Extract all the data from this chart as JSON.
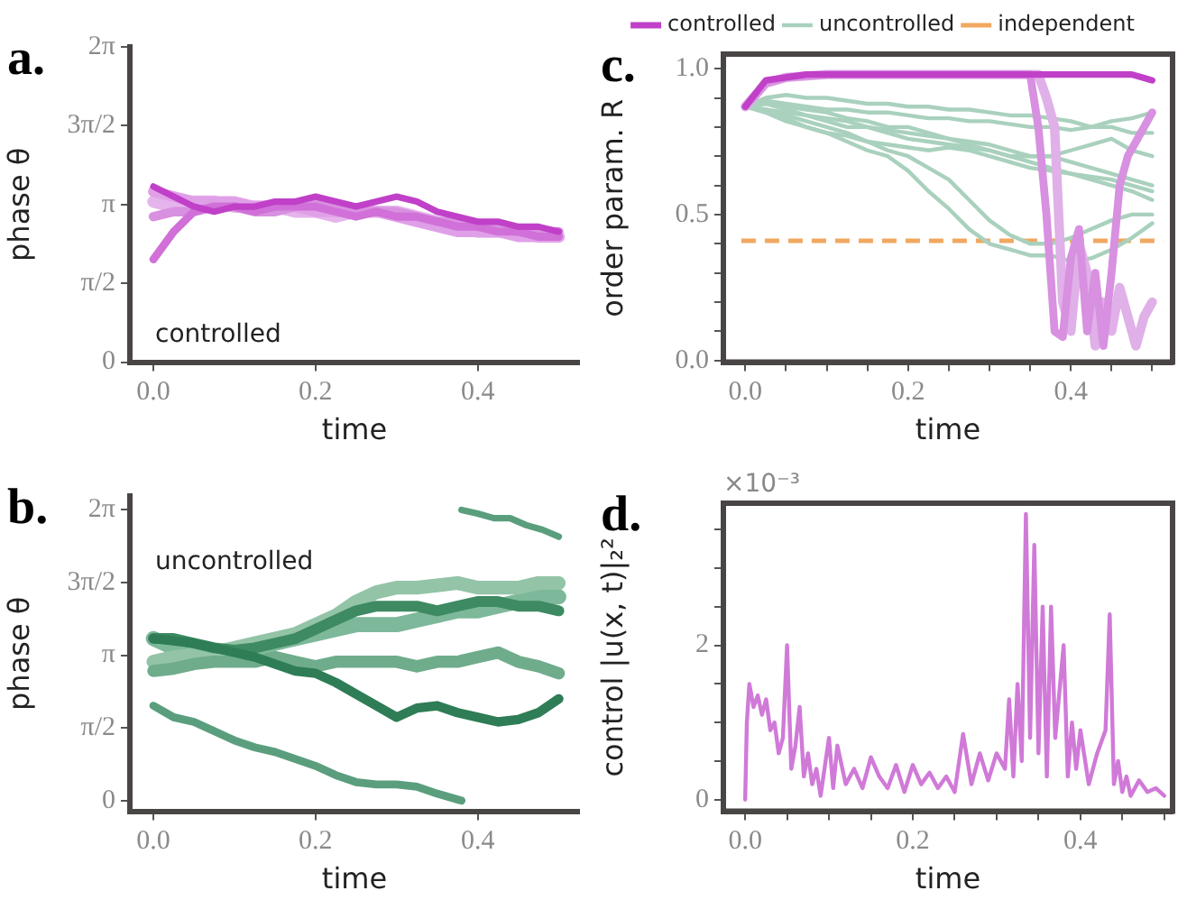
{
  "chart_data": [
    {
      "type": "line",
      "title": "a.",
      "xlabel": "time",
      "ylabel": "phase θ",
      "annotations": [
        "controlled"
      ],
      "marker": "none",
      "grid": false,
      "xlim": [
        -0.029,
        0.525
      ],
      "xticks": [
        {
          "value": 0,
          "label": "0.0"
        },
        {
          "value": 0.2,
          "label": "0.2"
        },
        {
          "value": 0.4,
          "label": "0.4"
        }
      ],
      "ylim": [
        0,
        6.2832
      ],
      "yticks": [
        {
          "value": 0,
          "label": "0"
        },
        {
          "value": 1.5708,
          "label": "π/2"
        },
        {
          "value": 3.1416,
          "label": "π"
        },
        {
          "value": 4.7124,
          "label": "3π/2"
        },
        {
          "value": 6.2832,
          "label": "2π"
        }
      ],
      "x": [
        0,
        0.025,
        0.05,
        0.075,
        0.1,
        0.125,
        0.15,
        0.175,
        0.2,
        0.225,
        0.25,
        0.275,
        0.3,
        0.325,
        0.35,
        0.375,
        0.4,
        0.425,
        0.45,
        0.475,
        0.5
      ],
      "series": [
        {
          "color": "#c040c8",
          "values": [
            3.5,
            3.3,
            3.1,
            3.0,
            3.1,
            3.1,
            3.2,
            3.2,
            3.3,
            3.2,
            3.1,
            3.2,
            3.3,
            3.2,
            3.0,
            2.9,
            2.8,
            2.8,
            2.7,
            2.7,
            2.6
          ]
        },
        {
          "color": "#d070d8",
          "values": [
            2.05,
            2.6,
            3.0,
            3.1,
            3.1,
            3.0,
            3.1,
            3.1,
            3.1,
            3.0,
            2.9,
            3.0,
            2.9,
            2.9,
            2.8,
            2.7,
            2.7,
            2.6,
            2.6,
            2.5,
            2.5
          ]
        },
        {
          "color": "#d890e0",
          "values": [
            2.9,
            3.0,
            3.0,
            3.1,
            3.1,
            3.0,
            3.0,
            3.1,
            3.2,
            3.1,
            3.0,
            3.0,
            3.0,
            2.9,
            2.8,
            2.8,
            2.7,
            2.7,
            2.6,
            2.6,
            2.6
          ]
        },
        {
          "color": "#e0a0e8",
          "values": [
            3.4,
            3.3,
            3.2,
            3.2,
            3.2,
            3.1,
            3.1,
            3.1,
            3.0,
            3.0,
            3.0,
            3.0,
            2.9,
            2.8,
            2.7,
            2.6,
            2.6,
            2.6,
            2.5,
            2.5,
            2.5
          ]
        },
        {
          "color": "#e6b4ec",
          "values": [
            3.2,
            3.1,
            3.2,
            3.2,
            3.1,
            3.1,
            3.1,
            3.0,
            3.0,
            2.9,
            3.0,
            3.0,
            3.0,
            2.9,
            2.8,
            2.7,
            2.6,
            2.6,
            2.6,
            2.5,
            2.5
          ]
        }
      ]
    },
    {
      "type": "line",
      "title": "c.",
      "xlabel": "time",
      "ylabel": "order param. R",
      "marker": "none",
      "grid": false,
      "legend": "top",
      "xlim": [
        -0.027,
        0.525
      ],
      "xticks": [
        {
          "value": 0,
          "label": "0.0"
        },
        {
          "value": 0.05,
          "label": null
        },
        {
          "value": 0.1,
          "label": null
        },
        {
          "value": 0.15,
          "label": null
        },
        {
          "value": 0.2,
          "label": "0.2"
        },
        {
          "value": 0.25,
          "label": null
        },
        {
          "value": 0.3,
          "label": null
        },
        {
          "value": 0.35,
          "label": null
        },
        {
          "value": 0.4,
          "label": "0.4"
        },
        {
          "value": 0.45,
          "label": null
        },
        {
          "value": 0.5,
          "label": null
        }
      ],
      "ylim": [
        -0.006,
        1.05
      ],
      "yticks": [
        {
          "value": 0,
          "label": "0.0"
        },
        {
          "value": 0.1,
          "label": null
        },
        {
          "value": 0.2,
          "label": null
        },
        {
          "value": 0.3,
          "label": null
        },
        {
          "value": 0.4,
          "label": null
        },
        0.5,
        {
          "value": 0.6,
          "label": null
        },
        {
          "value": 0.7,
          "label": null
        },
        {
          "value": 0.8,
          "label": null
        },
        {
          "value": 0.9,
          "label": null
        },
        {
          "value": 1,
          "label": "1.0"
        }
      ],
      "x": [
        0,
        0.025,
        0.05,
        0.075,
        0.1,
        0.125,
        0.15,
        0.175,
        0.2,
        0.225,
        0.25,
        0.275,
        0.3,
        0.325,
        0.35,
        0.375,
        0.4,
        0.425,
        0.45,
        0.475,
        0.5
      ],
      "ref_lines": [
        {
          "axis": "y",
          "value": 0.41,
          "label": "independent",
          "color": "#f0a860",
          "line_style": "dashed"
        }
      ],
      "series": [
        {
          "name": "controlled",
          "color": "#c040c8",
          "values": [
            0.87,
            0.96,
            0.97,
            0.98,
            0.98,
            0.98,
            0.98,
            0.98,
            0.98,
            0.98,
            0.98,
            0.98,
            0.98,
            0.98,
            0.98,
            0.98,
            0.98,
            0.98,
            0.98,
            0.98,
            0.96
          ]
        },
        {
          "color": "#d890e0",
          "x": [
            0,
            0.025,
            0.05,
            0.1,
            0.15,
            0.2,
            0.25,
            0.3,
            0.35,
            0.36,
            0.37,
            0.38,
            0.39,
            0.4,
            0.41,
            0.42,
            0.43,
            0.44,
            0.45,
            0.46,
            0.47,
            0.48,
            0.49,
            0.5
          ],
          "values": [
            0.87,
            0.95,
            0.97,
            0.98,
            0.98,
            0.98,
            0.98,
            0.98,
            0.98,
            0.8,
            0.5,
            0.1,
            0.08,
            0.35,
            0.45,
            0.1,
            0.3,
            0.05,
            0.3,
            0.6,
            0.7,
            0.75,
            0.8,
            0.85
          ]
        },
        {
          "color": "#e0b0e8",
          "x": [
            0,
            0.025,
            0.05,
            0.1,
            0.15,
            0.2,
            0.25,
            0.3,
            0.35,
            0.36,
            0.37,
            0.38,
            0.39,
            0.4,
            0.41,
            0.42,
            0.43,
            0.44,
            0.45,
            0.46,
            0.47,
            0.48,
            0.49,
            0.5
          ],
          "values": [
            0.87,
            0.95,
            0.97,
            0.98,
            0.98,
            0.98,
            0.98,
            0.98,
            0.98,
            0.98,
            0.9,
            0.8,
            0.2,
            0.1,
            0.4,
            0.3,
            0.05,
            0.2,
            0.1,
            0.25,
            0.15,
            0.05,
            0.15,
            0.2
          ]
        },
        {
          "name": "uncontrolled",
          "color": "#a9d1bd",
          "values": [
            0.87,
            0.85,
            0.83,
            0.8,
            0.78,
            0.75,
            0.72,
            0.7,
            0.65,
            0.58,
            0.52,
            0.45,
            0.4,
            0.38,
            0.36,
            0.36,
            0.34,
            0.35,
            0.38,
            0.42,
            0.47
          ]
        },
        {
          "color": "#a9d1bd",
          "values": [
            0.87,
            0.86,
            0.84,
            0.82,
            0.8,
            0.78,
            0.75,
            0.72,
            0.7,
            0.66,
            0.62,
            0.55,
            0.48,
            0.43,
            0.4,
            0.4,
            0.42,
            0.45,
            0.48,
            0.5,
            0.5
          ]
        },
        {
          "color": "#a9d1bd",
          "values": [
            0.87,
            0.88,
            0.87,
            0.86,
            0.85,
            0.83,
            0.82,
            0.8,
            0.8,
            0.78,
            0.76,
            0.74,
            0.72,
            0.7,
            0.68,
            0.66,
            0.64,
            0.62,
            0.6,
            0.58,
            0.55
          ]
        },
        {
          "color": "#a9d1bd",
          "values": [
            0.87,
            0.86,
            0.85,
            0.84,
            0.83,
            0.82,
            0.8,
            0.79,
            0.78,
            0.77,
            0.76,
            0.75,
            0.74,
            0.72,
            0.7,
            0.7,
            0.68,
            0.66,
            0.64,
            0.62,
            0.6
          ]
        },
        {
          "color": "#a9d1bd",
          "values": [
            0.87,
            0.9,
            0.91,
            0.9,
            0.9,
            0.89,
            0.88,
            0.88,
            0.87,
            0.87,
            0.86,
            0.86,
            0.85,
            0.84,
            0.84,
            0.83,
            0.82,
            0.8,
            0.8,
            0.78,
            0.78
          ]
        },
        {
          "color": "#a9d1bd",
          "values": [
            0.87,
            0.88,
            0.86,
            0.84,
            0.82,
            0.8,
            0.8,
            0.78,
            0.76,
            0.75,
            0.74,
            0.73,
            0.72,
            0.7,
            0.7,
            0.7,
            0.72,
            0.74,
            0.76,
            0.72,
            0.7
          ]
        },
        {
          "color": "#a9d1bd",
          "values": [
            0.87,
            0.85,
            0.82,
            0.8,
            0.78,
            0.77,
            0.75,
            0.74,
            0.73,
            0.72,
            0.73,
            0.72,
            0.7,
            0.68,
            0.66,
            0.65,
            0.64,
            0.63,
            0.62,
            0.6,
            0.58
          ]
        },
        {
          "color": "#a9d1bd",
          "values": [
            0.87,
            0.89,
            0.88,
            0.87,
            0.86,
            0.86,
            0.85,
            0.85,
            0.84,
            0.83,
            0.83,
            0.82,
            0.82,
            0.81,
            0.8,
            0.8,
            0.79,
            0.8,
            0.82,
            0.83,
            0.85
          ]
        }
      ]
    },
    {
      "type": "line",
      "title": "b.",
      "xlabel": "time",
      "ylabel": "phase θ",
      "annotations": [
        "uncontrolled"
      ],
      "marker": "none",
      "grid": false,
      "xlim": [
        -0.029,
        0.525
      ],
      "xticks": [
        {
          "value": 0,
          "label": "0.0"
        },
        {
          "value": 0.2,
          "label": "0.2"
        },
        {
          "value": 0.4,
          "label": "0.4"
        }
      ],
      "ylim": [
        -0.23,
        6.58
      ],
      "yticks": [
        {
          "value": 0,
          "label": "0"
        },
        {
          "value": 1.5708,
          "label": "π/2"
        },
        {
          "value": 3.1416,
          "label": "π"
        },
        {
          "value": 4.7124,
          "label": "3π/2"
        },
        {
          "value": 6.2832,
          "label": "2π"
        }
      ],
      "x": [
        0,
        0.025,
        0.05,
        0.075,
        0.1,
        0.125,
        0.15,
        0.175,
        0.2,
        0.225,
        0.25,
        0.275,
        0.3,
        0.325,
        0.35,
        0.375,
        0.4,
        0.425,
        0.45,
        0.475,
        0.5
      ],
      "series": [
        {
          "color": "#5a9e7e",
          "x": [
            0.38,
            0.4,
            0.42,
            0.44,
            0.46,
            0.48,
            0.5
          ],
          "values": [
            6.28,
            6.2,
            6.1,
            6.1,
            5.95,
            5.85,
            5.7
          ]
        },
        {
          "color": "#5a9e7e",
          "x": [
            0,
            0.025,
            0.05,
            0.075,
            0.1,
            0.125,
            0.15,
            0.175,
            0.2,
            0.225,
            0.25,
            0.275,
            0.3,
            0.325,
            0.35,
            0.38
          ],
          "values": [
            2.05,
            1.8,
            1.7,
            1.5,
            1.3,
            1.15,
            1.05,
            0.9,
            0.75,
            0.55,
            0.4,
            0.35,
            0.35,
            0.3,
            0.15,
            0.0
          ]
        },
        {
          "color": "#2e7d56",
          "values": [
            3.5,
            3.45,
            3.4,
            3.3,
            3.2,
            3.1,
            2.95,
            2.8,
            2.75,
            2.55,
            2.3,
            2.05,
            1.8,
            2.0,
            2.05,
            1.9,
            1.8,
            1.7,
            1.75,
            1.9,
            2.2
          ]
        },
        {
          "color": "#3e8a62",
          "values": [
            3.5,
            3.5,
            3.4,
            3.3,
            3.25,
            3.3,
            3.4,
            3.5,
            3.7,
            3.9,
            4.1,
            4.2,
            4.2,
            4.2,
            4.1,
            4.2,
            4.3,
            4.3,
            4.2,
            4.2,
            4.1
          ]
        },
        {
          "color": "#6fac8c",
          "values": [
            2.8,
            2.85,
            2.95,
            3.0,
            3.0,
            3.0,
            3.1,
            3.0,
            2.9,
            3.0,
            3.0,
            3.0,
            3.0,
            2.9,
            3.0,
            3.0,
            3.1,
            3.2,
            3.0,
            2.9,
            2.75
          ]
        },
        {
          "color": "#93c4a8",
          "values": [
            3.0,
            3.1,
            3.15,
            3.2,
            3.3,
            3.4,
            3.5,
            3.6,
            3.8,
            4.0,
            4.3,
            4.5,
            4.6,
            4.6,
            4.65,
            4.7,
            4.6,
            4.6,
            4.6,
            4.7,
            4.7
          ]
        },
        {
          "color": "#7db89a",
          "values": [
            3.5,
            3.3,
            3.2,
            3.2,
            3.2,
            3.3,
            3.4,
            3.5,
            3.6,
            3.7,
            3.8,
            3.8,
            3.8,
            3.9,
            4.0,
            4.1,
            4.1,
            4.2,
            4.3,
            4.4,
            4.4
          ]
        }
      ]
    },
    {
      "type": "line",
      "title": "d.",
      "xlabel": "time",
      "ylabel": "control |u(x, t)|₂²",
      "annotations": [
        "×10⁻³"
      ],
      "marker": "none",
      "grid": false,
      "xlim": [
        -0.026,
        0.51
      ],
      "xticks": [
        {
          "value": 0,
          "label": "0.0"
        },
        {
          "value": 0.05,
          "label": null
        },
        {
          "value": 0.1,
          "label": null
        },
        {
          "value": 0.15,
          "label": null
        },
        {
          "value": 0.2,
          "label": "0.2"
        },
        {
          "value": 0.25,
          "label": null
        },
        {
          "value": 0.3,
          "label": null
        },
        {
          "value": 0.35,
          "label": null
        },
        {
          "value": 0.4,
          "label": "0.4"
        },
        {
          "value": 0.45,
          "label": null
        },
        {
          "value": 0.5,
          "label": null
        }
      ],
      "ylim": [
        -0.15,
        3.84
      ],
      "yticks": [
        0,
        {
          "value": 0.5,
          "label": null
        },
        {
          "value": 1,
          "label": null
        },
        {
          "value": 1.5,
          "label": null
        },
        2,
        {
          "value": 2.5,
          "label": null
        },
        {
          "value": 3,
          "label": null
        },
        {
          "value": 3.5,
          "label": null
        }
      ],
      "x": [
        0,
        0.002,
        0.005,
        0.01,
        0.015,
        0.02,
        0.025,
        0.03,
        0.035,
        0.04,
        0.045,
        0.05,
        0.055,
        0.06,
        0.065,
        0.07,
        0.075,
        0.08,
        0.085,
        0.09,
        0.1,
        0.105,
        0.11,
        0.12,
        0.13,
        0.14,
        0.15,
        0.16,
        0.17,
        0.18,
        0.19,
        0.2,
        0.21,
        0.22,
        0.23,
        0.24,
        0.25,
        0.26,
        0.27,
        0.28,
        0.29,
        0.3,
        0.31,
        0.315,
        0.32,
        0.325,
        0.33,
        0.335,
        0.34,
        0.345,
        0.35,
        0.355,
        0.36,
        0.365,
        0.37,
        0.375,
        0.38,
        0.385,
        0.39,
        0.395,
        0.4,
        0.41,
        0.42,
        0.43,
        0.435,
        0.44,
        0.445,
        0.45,
        0.455,
        0.46,
        0.47,
        0.48,
        0.49,
        0.5
      ],
      "series": [
        {
          "color": "#d07ad8",
          "values": [
            0,
            1.0,
            1.5,
            1.2,
            1.35,
            1.1,
            1.3,
            0.9,
            1.0,
            0.6,
            0.8,
            2.0,
            0.4,
            0.7,
            1.2,
            0.3,
            0.6,
            0.2,
            0.4,
            0.05,
            0.8,
            0.15,
            0.7,
            0.2,
            0.4,
            0.15,
            0.55,
            0.3,
            0.15,
            0.45,
            0.1,
            0.45,
            0.2,
            0.35,
            0.15,
            0.3,
            0.1,
            0.85,
            0.2,
            0.6,
            0.25,
            0.6,
            0.4,
            1.3,
            0.3,
            1.5,
            0.5,
            3.7,
            0.8,
            3.3,
            0.6,
            2.5,
            0.3,
            2.5,
            0.8,
            1.4,
            2.0,
            0.3,
            1.0,
            0.4,
            0.9,
            0.2,
            0.6,
            0.9,
            2.4,
            0.2,
            0.5,
            0.1,
            0.3,
            0.05,
            0.25,
            0.1,
            0.15,
            0.05
          ]
        }
      ]
    }
  ]
}
